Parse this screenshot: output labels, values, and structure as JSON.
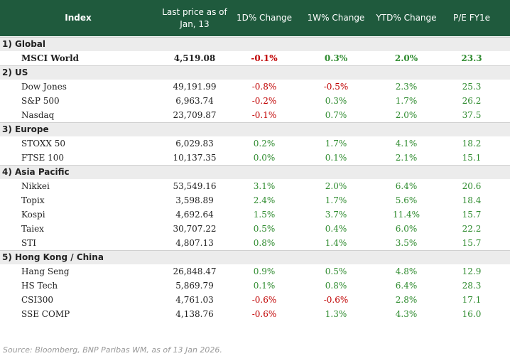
{
  "header": [
    "Index",
    "Last price as of Jan, 13",
    "1D% Change",
    "1W% Change",
    "YTD% Change",
    "P/E FY1e"
  ],
  "sections": [
    {
      "title": "1) Global",
      "rows": [
        [
          "MSCI World",
          "4,519.08",
          "-0.1%",
          "0.3%",
          "2.0%",
          "23.3"
        ]
      ]
    },
    {
      "title": "2) US",
      "rows": [
        [
          "Dow Jones",
          "49,191.99",
          "-0.8%",
          "-0.5%",
          "2.3%",
          "25.3"
        ],
        [
          "S&P 500",
          "6,963.74",
          "-0.2%",
          "0.3%",
          "1.7%",
          "26.2"
        ],
        [
          "Nasdaq",
          "23,709.87",
          "-0.1%",
          "0.7%",
          "2.0%",
          "37.5"
        ]
      ]
    },
    {
      "title": "3) Europe",
      "rows": [
        [
          "STOXX 50",
          "6,029.83",
          "0.2%",
          "1.7%",
          "4.1%",
          "18.2"
        ],
        [
          "FTSE 100",
          "10,137.35",
          "0.0%",
          "0.1%",
          "2.1%",
          "15.1"
        ]
      ]
    },
    {
      "title": "4) Asia Pacific",
      "rows": [
        [
          "Nikkei",
          "53,549.16",
          "3.1%",
          "2.0%",
          "6.4%",
          "20.6"
        ],
        [
          "Topix",
          "3,598.89",
          "2.4%",
          "1.7%",
          "5.6%",
          "18.4"
        ],
        [
          "Kospi",
          "4,692.64",
          "1.5%",
          "3.7%",
          "11.4%",
          "15.7"
        ],
        [
          "Taiex",
          "30,707.22",
          "0.5%",
          "0.4%",
          "6.0%",
          "22.2"
        ],
        [
          "STI",
          "4,807.13",
          "0.8%",
          "1.4%",
          "3.5%",
          "15.7"
        ]
      ]
    },
    {
      "title": "5) Hong Kong / China",
      "rows": [
        [
          "Hang Seng",
          "26,848.47",
          "0.9%",
          "0.5%",
          "4.8%",
          "12.9"
        ],
        [
          "HS Tech",
          "5,869.79",
          "0.1%",
          "0.8%",
          "6.4%",
          "28.3"
        ],
        [
          "CSI300",
          "4,761.03",
          "-0.6%",
          "-0.6%",
          "2.8%",
          "17.1"
        ],
        [
          "SSE COMP",
          "4,138.76",
          "-0.6%",
          "1.3%",
          "4.3%",
          "16.0"
        ]
      ]
    }
  ],
  "source": "Source: Bloomberg, BNP Paribas WM, as of 13 Jan 2026."
}
